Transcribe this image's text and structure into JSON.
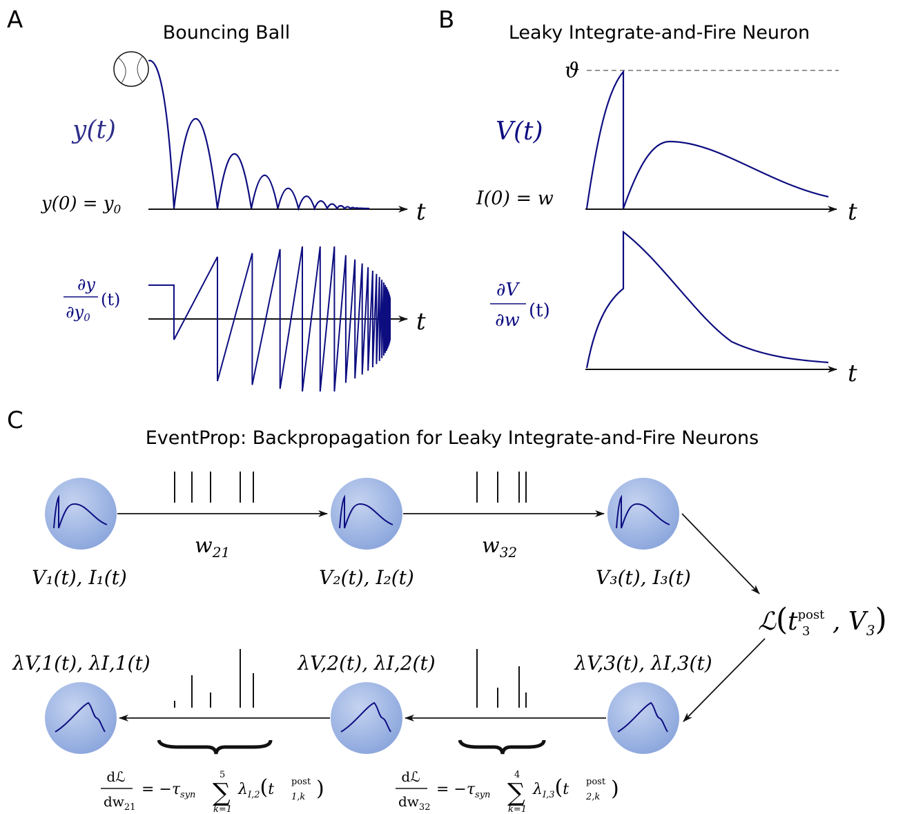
{
  "panels": {
    "a": {
      "letter": "A",
      "title": "Bouncing Ball",
      "y_label": "y(t)",
      "init_label": "y(0) = y",
      "init_sub": "0",
      "t_label": "t",
      "grad_num": "∂y",
      "grad_den": "∂y",
      "grad_den_sub": "0",
      "grad_arg": "(t)"
    },
    "b": {
      "letter": "B",
      "title": "Leaky Integrate-and-Fire Neuron",
      "theta": "ϑ",
      "v_label": "V(t)",
      "init_label": "I(0) = w",
      "t_label": "t",
      "grad_num": "∂V",
      "grad_den": "∂w",
      "grad_arg": "(t)"
    },
    "c": {
      "letter": "C",
      "title": "EventProp: Backpropagation for Leaky Integrate-and-Fire Neurons",
      "neurons": [
        {
          "forward": "V₁(t), I₁(t)",
          "backward": "λV,1(t), λI,1(t)"
        },
        {
          "forward": "V₂(t), I₂(t)",
          "backward": "λV,2(t), λI,2(t)"
        },
        {
          "forward": "V₃(t), I₃(t)",
          "backward": "λV,3(t), λI,3(t)"
        }
      ],
      "weights": [
        {
          "w": "w",
          "sub": "21"
        },
        {
          "w": "w",
          "sub": "32"
        }
      ],
      "loss": {
        "L": "ℒ",
        "t": "t",
        "sup": "post",
        "sub": "3",
        "rest": ", V",
        "rest_sub": "3"
      },
      "grads": [
        {
          "num": "dℒ",
          "den": "dw",
          "den_sub": "21",
          "eq": "= −τ",
          "tau_sub": "syn",
          "sum": "∑",
          "upper": "5",
          "lower": "k=1",
          "lam": "λ",
          "lam_sub": "I,2",
          "tpost_sup": "post",
          "tpost_sub": "1,k"
        },
        {
          "num": "dℒ",
          "den": "dw",
          "den_sub": "32",
          "eq": "= −τ",
          "tau_sub": "syn",
          "sum": "∑",
          "upper": "4",
          "lower": "k=1",
          "lam": "λ",
          "lam_sub": "I,3",
          "tpost_sup": "post",
          "tpost_sub": "2,k"
        }
      ]
    }
  },
  "colors": {
    "curve": "#0d0d80",
    "axis": "#111111",
    "neuron_fill": "#9fb5e3",
    "neuron_edge": "#6f8cc9"
  }
}
